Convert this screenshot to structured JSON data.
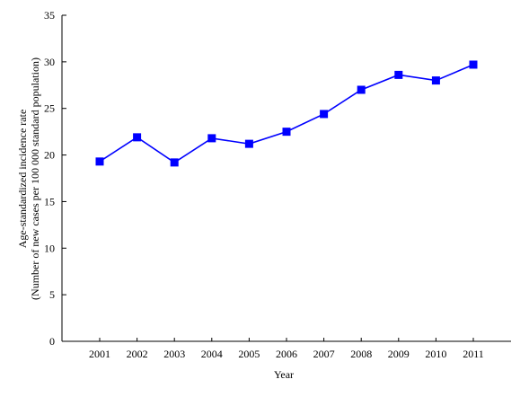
{
  "chart_data": {
    "type": "line",
    "title": "",
    "xlabel": "Year",
    "ylabel_line1": "Age-standardized incidence rate",
    "ylabel_line2": "(Number of new cases per 100 000 standard population)",
    "categories": [
      "2001",
      "2002",
      "2003",
      "2004",
      "2005",
      "2006",
      "2007",
      "2008",
      "2009",
      "2010",
      "2011"
    ],
    "series": [
      {
        "values": [
          19.3,
          21.9,
          19.2,
          21.8,
          21.2,
          22.5,
          24.4,
          27.0,
          28.6,
          28.0,
          29.7
        ]
      }
    ],
    "ylim": [
      0,
      35
    ],
    "yticks": [
      "0",
      "5",
      "10",
      "15",
      "20",
      "25",
      "30",
      "35"
    ],
    "grid": false,
    "legend": "none",
    "colors": {
      "series": "#0000ff",
      "axis": "#000000"
    }
  }
}
